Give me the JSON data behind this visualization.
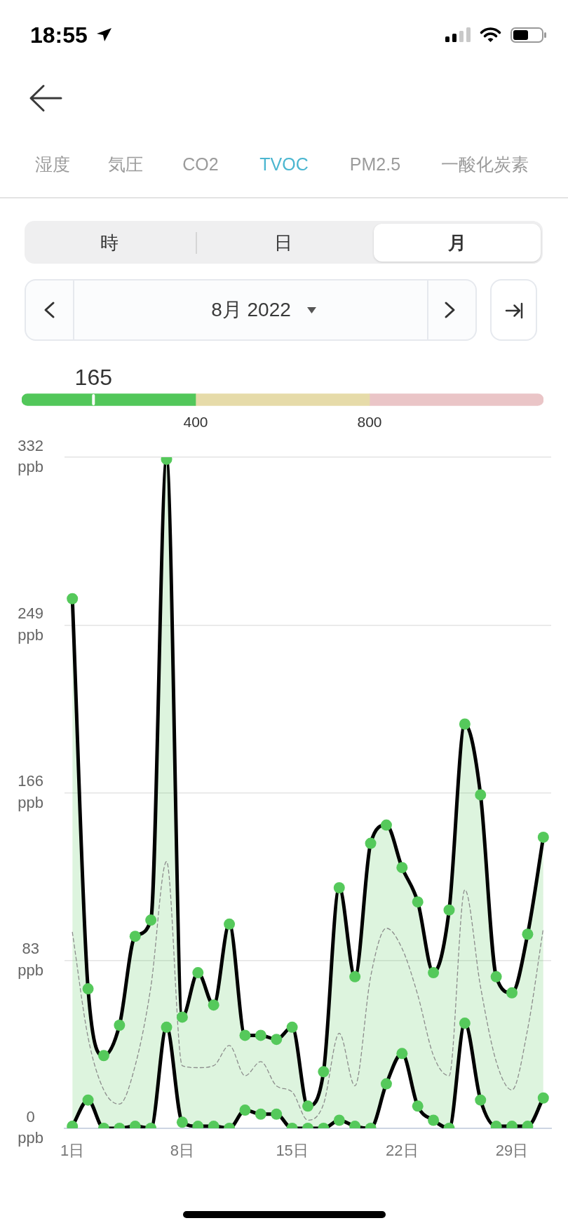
{
  "chart_data": [
    {
      "type": "other",
      "annotations": [
        "18:55",
        "湿度",
        "気圧",
        "CO2",
        "TVOC",
        "PM2.5",
        "一酸化炭素",
        "時",
        "日",
        "月",
        "8月 2022"
      ]
    },
    {
      "type": "bar",
      "orientation": "horizontal",
      "stacked": true,
      "categories": [
        null
      ],
      "series": [
        {
          "color": "#52c75a",
          "values": [
            400
          ]
        },
        {
          "color": "#e6dba9",
          "values": [
            400
          ]
        },
        {
          "color": "#eac5c7",
          "values": [
            400
          ]
        }
      ],
      "xlim": [
        0,
        1200
      ],
      "xticks": [
        400,
        800
      ],
      "tick_labels": "x",
      "ref_lines": [
        {
          "axis": "x",
          "value": 165,
          "label": "165",
          "color": "#ffffff"
        }
      ]
    },
    {
      "type": "line",
      "categories": [
        "1日",
        null,
        null,
        null,
        null,
        null,
        null,
        "8日",
        null,
        null,
        null,
        null,
        null,
        null,
        "15日",
        null,
        null,
        null,
        null,
        null,
        null,
        "22日",
        null,
        null,
        null,
        null,
        null,
        null,
        "29日",
        null,
        null
      ],
      "series": [
        {
          "color": "#000000",
          "marker": "circle",
          "line_style": "solid",
          "values": [
            262,
            69,
            36,
            51,
            95,
            103,
            331,
            55,
            77,
            61,
            101,
            46,
            46,
            44,
            50,
            11,
            28,
            119,
            75,
            141,
            150,
            129,
            112,
            77,
            108,
            200,
            165,
            75,
            67,
            96,
            144
          ]
        },
        {
          "color": "#000000",
          "marker": "circle",
          "line_style": "solid",
          "values": [
            1,
            14,
            0,
            0,
            1,
            0,
            50,
            3,
            1,
            1,
            0,
            9,
            7,
            7,
            0,
            0,
            0,
            4,
            1,
            0,
            22,
            37,
            11,
            4,
            0,
            52,
            14,
            1,
            1,
            1,
            15
          ]
        },
        {
          "color": "#8c8c8c",
          "marker": "none",
          "line_style": "dashed",
          "values": [
            97,
            45,
            19,
            12,
            31,
            70,
            132,
            31,
            30,
            31,
            41,
            26,
            33,
            21,
            18,
            4,
            12,
            47,
            21,
            75,
            99,
            89,
            66,
            36,
            26,
            118,
            70,
            33,
            19,
            49,
            99
          ],
          "lower": [
            1,
            14,
            0,
            0,
            1,
            0,
            50,
            3,
            1,
            1,
            0,
            9,
            7,
            7,
            0,
            0,
            0,
            4,
            1,
            0,
            22,
            37,
            11,
            4,
            0,
            52,
            14,
            1,
            1,
            1,
            15
          ],
          "upper": [
            262,
            69,
            36,
            51,
            95,
            103,
            331,
            55,
            77,
            61,
            101,
            46,
            46,
            44,
            50,
            11,
            28,
            119,
            75,
            141,
            150,
            129,
            112,
            77,
            108,
            200,
            165,
            75,
            67,
            96,
            144
          ]
        }
      ],
      "ylim": [
        0,
        332
      ],
      "yticks": [
        {
          "value": 0,
          "label": "0\nppb"
        },
        {
          "value": 83,
          "label": "83\nppb"
        },
        {
          "value": 166,
          "label": "166\nppb"
        },
        {
          "value": 249,
          "label": "249\nppb"
        },
        {
          "value": 332,
          "label": "332\nppb"
        }
      ],
      "grid": "y"
    }
  ]
}
